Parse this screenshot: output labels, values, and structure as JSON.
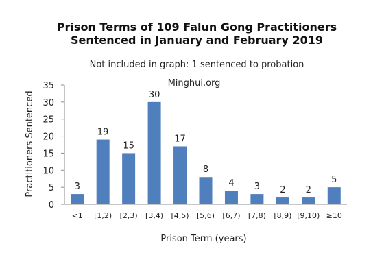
{
  "chart_data": {
    "type": "bar",
    "title_line1": "Prison Terms of 109 Falun Gong Practitioners",
    "title_line2": "Sentenced in January and February 2019",
    "subtitle": "Not included in graph:  1 sentenced to probation",
    "watermark": "Minghui.org",
    "xlabel": "Prison Term (years)",
    "ylabel": "Practitioners Sentenced",
    "ylim": [
      0,
      35
    ],
    "yticks": [
      0,
      5,
      10,
      15,
      20,
      25,
      30,
      35
    ],
    "categories": [
      "<1",
      "[1,2)",
      "[2,3)",
      "[3,4)",
      "[4,5)",
      "[5,6)",
      "[6,7)",
      "[7,8)",
      "[8,9)",
      "[9,10)",
      "≥10"
    ],
    "values": [
      3,
      19,
      15,
      30,
      17,
      8,
      4,
      3,
      2,
      2,
      5
    ],
    "bar_color": "#4f7fbd",
    "grid": false
  }
}
